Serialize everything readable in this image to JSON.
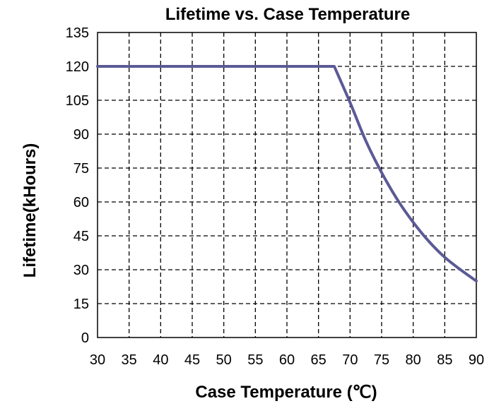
{
  "chart_data": {
    "type": "line",
    "title": "Lifetime vs. Case Temperature",
    "xlabel": "Case Temperature (℃)",
    "ylabel": "Lifetime(kHours)",
    "xlim": [
      30,
      90
    ],
    "ylim": [
      0,
      135
    ],
    "xticks": [
      30,
      35,
      40,
      45,
      50,
      55,
      60,
      65,
      70,
      75,
      80,
      85,
      90
    ],
    "yticks": [
      0,
      15,
      30,
      45,
      60,
      75,
      90,
      105,
      120,
      135
    ],
    "grid": true,
    "series": [
      {
        "name": "Lifetime",
        "color": "#5b5a96",
        "x": [
          30,
          67.5,
          70,
          72.5,
          75,
          77.5,
          80,
          82.5,
          85,
          87.5,
          90
        ],
        "y": [
          120,
          120,
          104,
          87,
          73,
          61,
          51,
          42.5,
          35.5,
          30,
          25
        ]
      }
    ]
  }
}
